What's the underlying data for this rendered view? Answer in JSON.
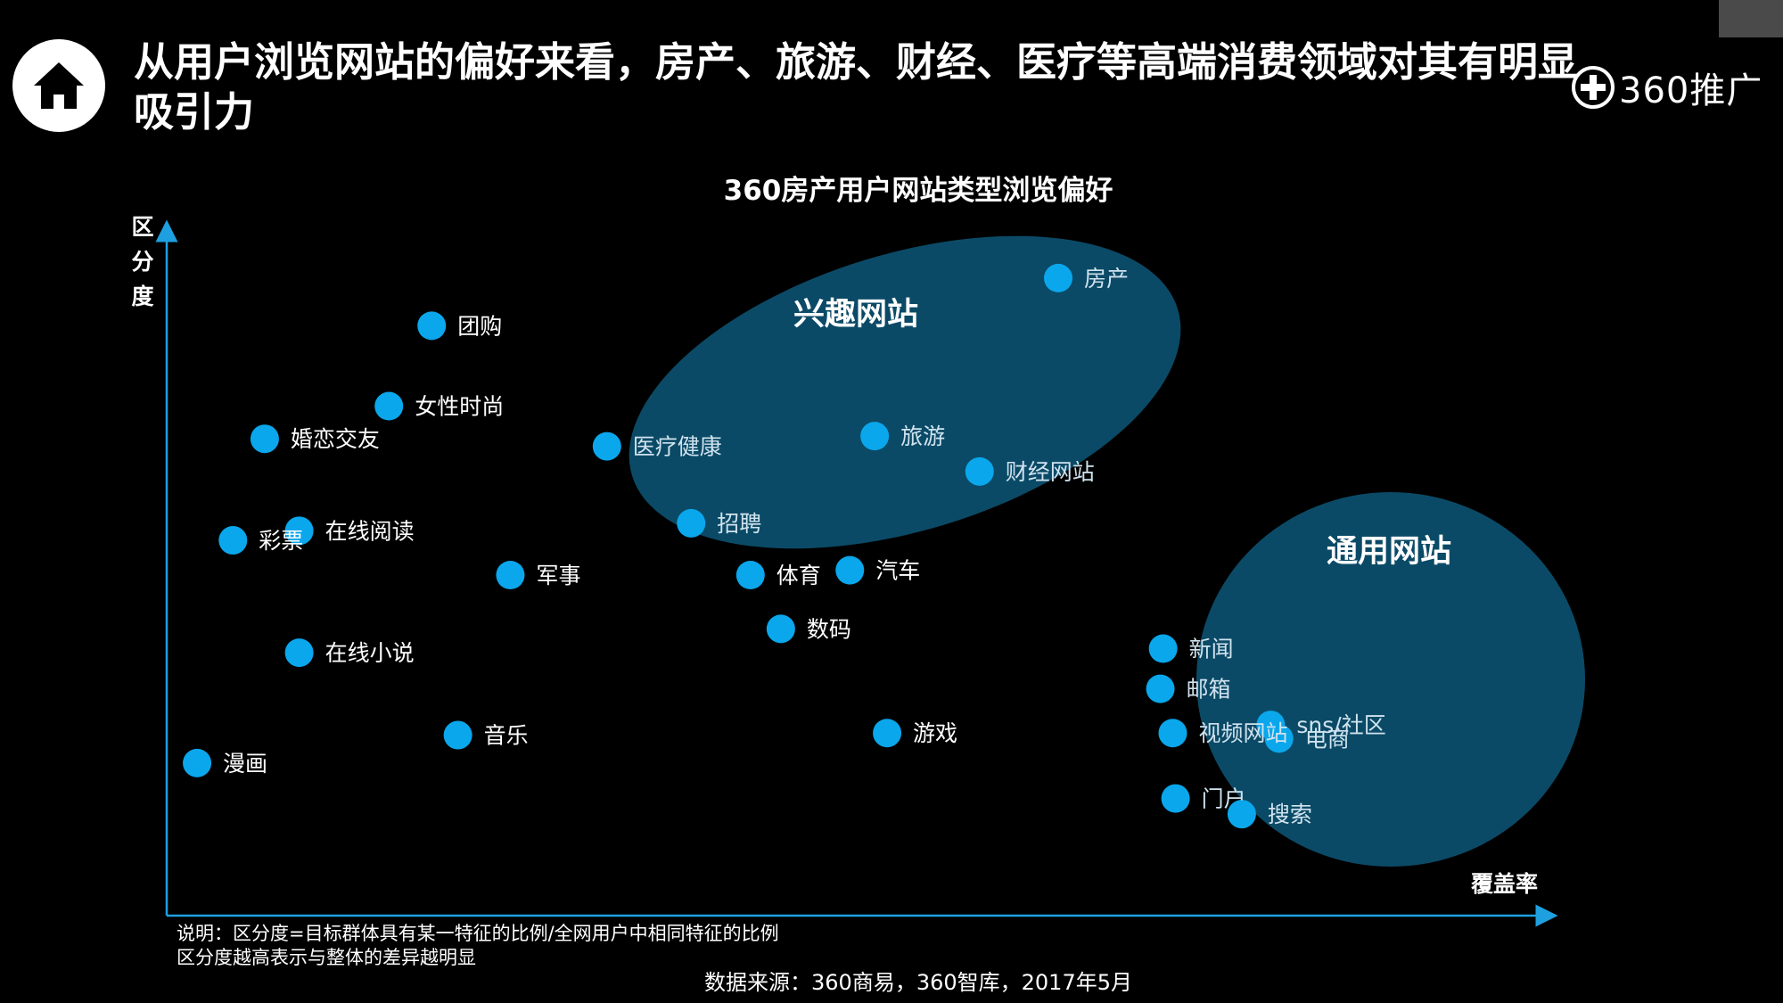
{
  "header": {
    "title": "从用户浏览网站的偏好来看，房产、旅游、财经、医疗等高端消费领域对其有明显吸引力",
    "brand_name": "360推广",
    "home_icon": "home-icon",
    "brand_icon": "plus-circle-icon"
  },
  "colors": {
    "point": "#0aa7ec",
    "axis": "#1ea0e0",
    "cluster_fill": "#0b4a66",
    "label_on_dark": "#ffffff",
    "label_in_cluster": "#cfe3ef"
  },
  "chart_data": {
    "type": "scatter",
    "title": "360房产用户网站类型浏览偏好",
    "xlabel": "覆盖率",
    "ylabel": "区分度",
    "xlim": [
      0,
      100
    ],
    "ylim": [
      0,
      100
    ],
    "grid": false,
    "axis_ticks": false,
    "points": [
      {
        "label": "房产",
        "x": 64.6,
        "y": 93.6
      },
      {
        "label": "团购",
        "x": 19.2,
        "y": 86.6
      },
      {
        "label": "女性时尚",
        "x": 16.1,
        "y": 74.8
      },
      {
        "label": "婚恋交友",
        "x": 7.1,
        "y": 70.0
      },
      {
        "label": "医疗健康",
        "x": 31.9,
        "y": 68.9
      },
      {
        "label": "旅游",
        "x": 51.3,
        "y": 70.4
      },
      {
        "label": "财经网站",
        "x": 58.9,
        "y": 65.2
      },
      {
        "label": "招聘",
        "x": 38.0,
        "y": 57.6
      },
      {
        "label": "在线阅读",
        "x": 9.6,
        "y": 56.5
      },
      {
        "label": "彩票",
        "x": 4.8,
        "y": 55.1
      },
      {
        "label": "军事",
        "x": 24.9,
        "y": 50.0
      },
      {
        "label": "体育",
        "x": 42.3,
        "y": 50.0
      },
      {
        "label": "汽车",
        "x": 49.5,
        "y": 50.7
      },
      {
        "label": "数码",
        "x": 44.5,
        "y": 42.1
      },
      {
        "label": "在线小说",
        "x": 9.6,
        "y": 38.6
      },
      {
        "label": "音乐",
        "x": 21.1,
        "y": 26.5
      },
      {
        "label": "游戏",
        "x": 52.2,
        "y": 26.8
      },
      {
        "label": "漫画",
        "x": 2.2,
        "y": 22.4
      },
      {
        "label": "新闻",
        "x": 72.2,
        "y": 39.2
      },
      {
        "label": "邮箱",
        "x": 72.0,
        "y": 33.3
      },
      {
        "label": "sns/社区",
        "x": 80.0,
        "y": 28.0
      },
      {
        "label": "电商",
        "x": 80.6,
        "y": 26.0
      },
      {
        "label": "视频网站",
        "x": 72.9,
        "y": 26.8
      },
      {
        "label": "门户",
        "x": 73.1,
        "y": 17.2
      },
      {
        "label": "搜索",
        "x": 77.9,
        "y": 14.9
      }
    ],
    "clusters": [
      {
        "label": "兴趣网站",
        "members": [
          "房产",
          "旅游",
          "财经网站",
          "医疗健康",
          "招聘"
        ]
      },
      {
        "label": "通用网站",
        "members": [
          "新闻",
          "邮箱",
          "sns/社区",
          "电商",
          "视频网站",
          "门户",
          "搜索"
        ]
      }
    ]
  },
  "footer": {
    "note_line1": "说明：区分度=目标群体具有某一特征的比例/全网用户中相同特征的比例",
    "note_line2": "区分度越高表示与整体的差异越明显",
    "source": "数据来源：360商易，360智库，2017年5月"
  }
}
